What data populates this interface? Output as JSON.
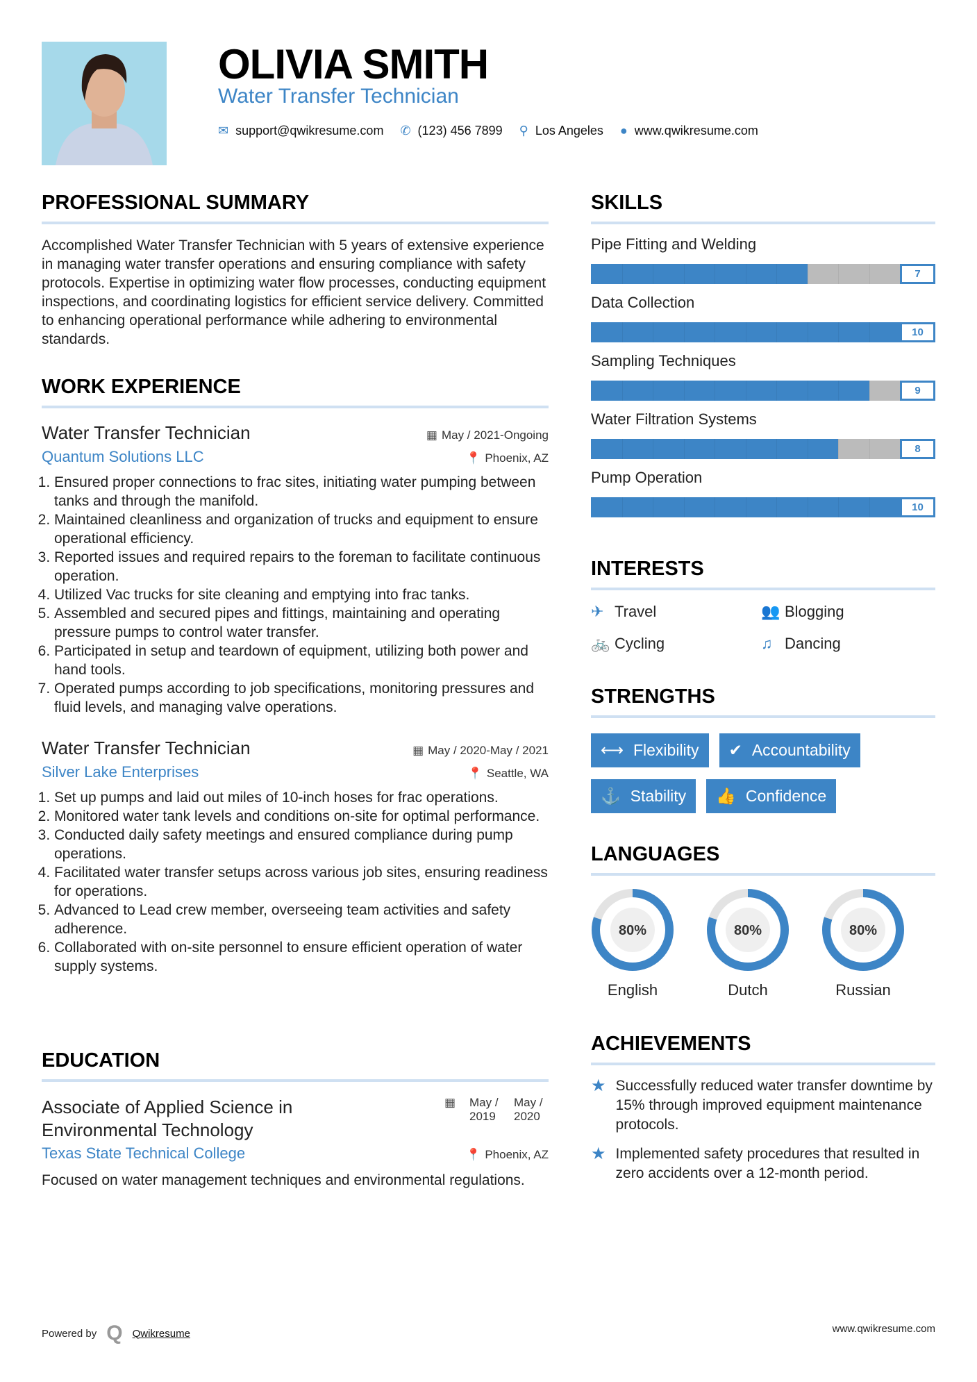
{
  "header": {
    "name": "OLIVIA SMITH",
    "title": "Water Transfer Technician",
    "email": "support@qwikresume.com",
    "phone": "(123) 456 7899",
    "location": "Los Angeles",
    "website": "www.qwikresume.com"
  },
  "summary": {
    "heading": "PROFESSIONAL SUMMARY",
    "text": "Accomplished Water Transfer Technician with 5 years of extensive experience in managing water transfer operations and ensuring compliance with safety protocols. Expertise in optimizing water flow processes, conducting equipment inspections, and coordinating logistics for efficient service delivery. Committed to enhancing operational performance while adhering to environmental standards."
  },
  "work": {
    "heading": "WORK EXPERIENCE",
    "jobs": [
      {
        "title": "Water Transfer Technician",
        "date": "May / 2021-Ongoing",
        "company": "Quantum Solutions LLC",
        "location": "Phoenix, AZ",
        "duties": [
          "Ensured proper connections to frac sites, initiating water pumping between tanks and through the manifold.",
          "Maintained cleanliness and organization of trucks and equipment to ensure operational efficiency.",
          "Reported issues and required repairs to the foreman to facilitate continuous operation.",
          "Utilized Vac trucks for site cleaning and emptying into frac tanks.",
          "Assembled and secured pipes and fittings, maintaining and operating pressure pumps to control water transfer.",
          "Participated in setup and teardown of equipment, utilizing both power and hand tools.",
          "Operated pumps according to job specifications, monitoring pressures and fluid levels, and managing valve operations."
        ]
      },
      {
        "title": "Water Transfer Technician",
        "date": "May / 2020-May / 2021",
        "company": "Silver Lake Enterprises",
        "location": "Seattle, WA",
        "duties": [
          "Set up pumps and laid out miles of 10-inch hoses for frac operations.",
          "Monitored water tank levels and conditions on-site for optimal performance.",
          "Conducted daily safety meetings and ensured compliance during pump operations.",
          "Facilitated water transfer setups across various job sites, ensuring readiness for operations.",
          "Advanced to Lead crew member, overseeing team activities and safety adherence.",
          "Collaborated with on-site personnel to ensure efficient operation of water supply systems."
        ]
      }
    ]
  },
  "education": {
    "heading": "EDUCATION",
    "degree": "Associate of Applied Science in Environmental Technology",
    "start": "May / 2019",
    "end": "May / 2020",
    "school": "Texas State Technical College",
    "location": "Phoenix, AZ",
    "description": "Focused on water management techniques and environmental regulations."
  },
  "skills": {
    "heading": "SKILLS",
    "max": 10,
    "items": [
      {
        "name": "Pipe Fitting and Welding",
        "level": 7
      },
      {
        "name": "Data Collection",
        "level": 10
      },
      {
        "name": "Sampling Techniques",
        "level": 9
      },
      {
        "name": "Water Filtration Systems",
        "level": 8
      },
      {
        "name": "Pump Operation",
        "level": 10
      }
    ]
  },
  "interests": {
    "heading": "INTERESTS",
    "items": [
      {
        "label": "Travel",
        "icon": "plane-icon"
      },
      {
        "label": "Blogging",
        "icon": "users-icon"
      },
      {
        "label": "Cycling",
        "icon": "bicycle-icon"
      },
      {
        "label": "Dancing",
        "icon": "music-icon"
      }
    ]
  },
  "strengths": {
    "heading": "STRENGTHS",
    "items": [
      {
        "label": "Flexibility",
        "icon": "arrows-h-icon"
      },
      {
        "label": "Accountability",
        "icon": "check-circle-icon"
      },
      {
        "label": "Stability",
        "icon": "anchor-icon"
      },
      {
        "label": "Confidence",
        "icon": "thumbs-up-icon"
      }
    ]
  },
  "languages": {
    "heading": "LANGUAGES",
    "items": [
      {
        "name": "English",
        "percent": 80,
        "label": "80%"
      },
      {
        "name": "Dutch",
        "percent": 80,
        "label": "80%"
      },
      {
        "name": "Russian",
        "percent": 80,
        "label": "80%"
      }
    ]
  },
  "achievements": {
    "heading": "ACHIEVEMENTS",
    "items": [
      "Successfully reduced water transfer downtime by 15% through improved equipment maintenance protocols.",
      "Implemented safety procedures that resulted in zero accidents over a 12-month period."
    ]
  },
  "footer": {
    "powered_by": "Powered by",
    "brand": "Qwikresume",
    "website": "www.qwikresume.com"
  },
  "colors": {
    "accent": "#3d85c6",
    "track": "#bbbbbb",
    "rule": "#cfe0f2"
  }
}
